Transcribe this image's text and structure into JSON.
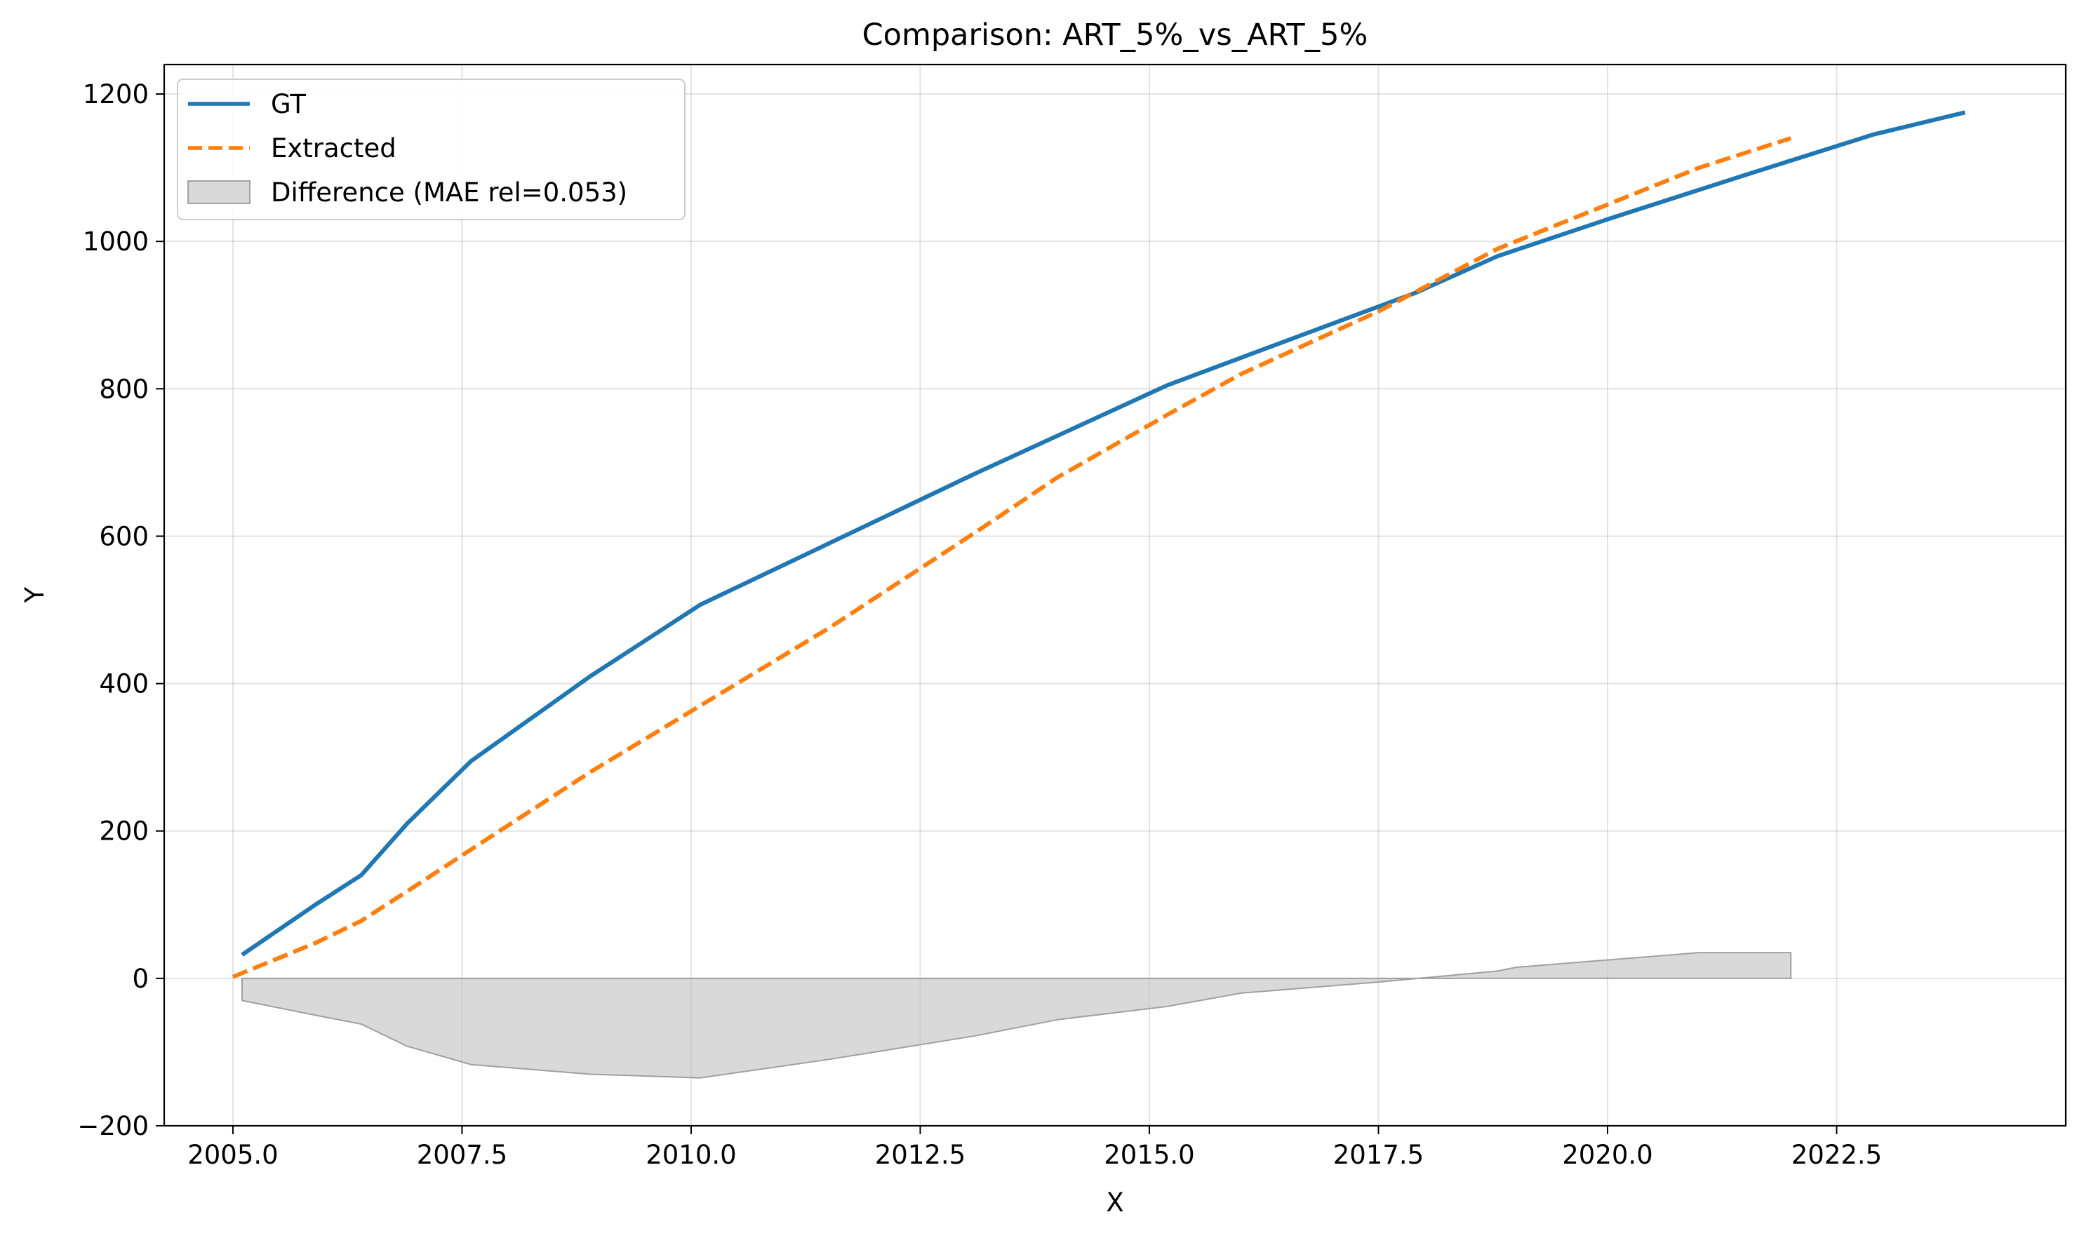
{
  "chart_data": {
    "type": "line",
    "title": "Comparison: ART_5%_vs_ART_5%",
    "xlabel": "X",
    "ylabel": "Y",
    "xlim": [
      2004.25,
      2025.0
    ],
    "ylim": [
      -200,
      1240
    ],
    "x_ticks": [
      2005.0,
      2007.5,
      2010.0,
      2012.5,
      2015.0,
      2017.5,
      2020.0,
      2022.5
    ],
    "x_tick_labels": [
      "2005.0",
      "2007.5",
      "2010.0",
      "2012.5",
      "2015.0",
      "2017.5",
      "2020.0",
      "2022.5"
    ],
    "y_ticks": [
      -200,
      0,
      200,
      400,
      600,
      800,
      1000,
      1200
    ],
    "y_tick_labels": [
      "−200",
      "0",
      "200",
      "400",
      "600",
      "800",
      "1000",
      "1200"
    ],
    "grid": true,
    "legend_position": "top-left",
    "series": [
      {
        "name": "GT",
        "style": "solid",
        "color": "#1f77b4",
        "x": [
          2005.1,
          2005.9,
          2006.4,
          2006.9,
          2007.6,
          2008.9,
          2010.1,
          2011.5,
          2013.1,
          2015.2,
          2016.6,
          2017.9,
          2018.8,
          2020.0,
          2021.5,
          2022.9,
          2023.9
        ],
        "y": [
          32,
          100,
          140,
          210,
          295,
          410,
          507,
          590,
          685,
          805,
          870,
          930,
          980,
          1030,
          1090,
          1145,
          1175
        ]
      },
      {
        "name": "Extracted",
        "style": "dashed",
        "color": "#ff7f0e",
        "x": [
          2005.0,
          2005.9,
          2006.4,
          2006.9,
          2007.6,
          2008.9,
          2010.1,
          2011.5,
          2013.1,
          2014.0,
          2015.2,
          2016.0,
          2017.5,
          2018.8,
          2020.0,
          2021.0,
          2022.0
        ],
        "y": [
          2,
          48,
          78,
          118,
          175,
          280,
          370,
          475,
          605,
          680,
          765,
          820,
          905,
          990,
          1050,
          1100,
          1140
        ]
      }
    ],
    "difference": {
      "name": "Difference (MAE rel=0.053)",
      "color": "#bfbfbf",
      "x": [
        2005.1,
        2005.9,
        2006.4,
        2006.9,
        2007.6,
        2008.9,
        2010.1,
        2011.5,
        2013.1,
        2014.0,
        2015.2,
        2016.0,
        2017.5,
        2018.8,
        2019.0,
        2020.0,
        2021.0,
        2022.0
      ],
      "y": [
        -30,
        -50,
        -62,
        -92,
        -117,
        -130,
        -135,
        -110,
        -78,
        -56,
        -38,
        -20,
        -5,
        10,
        15,
        25,
        35,
        35
      ]
    }
  }
}
